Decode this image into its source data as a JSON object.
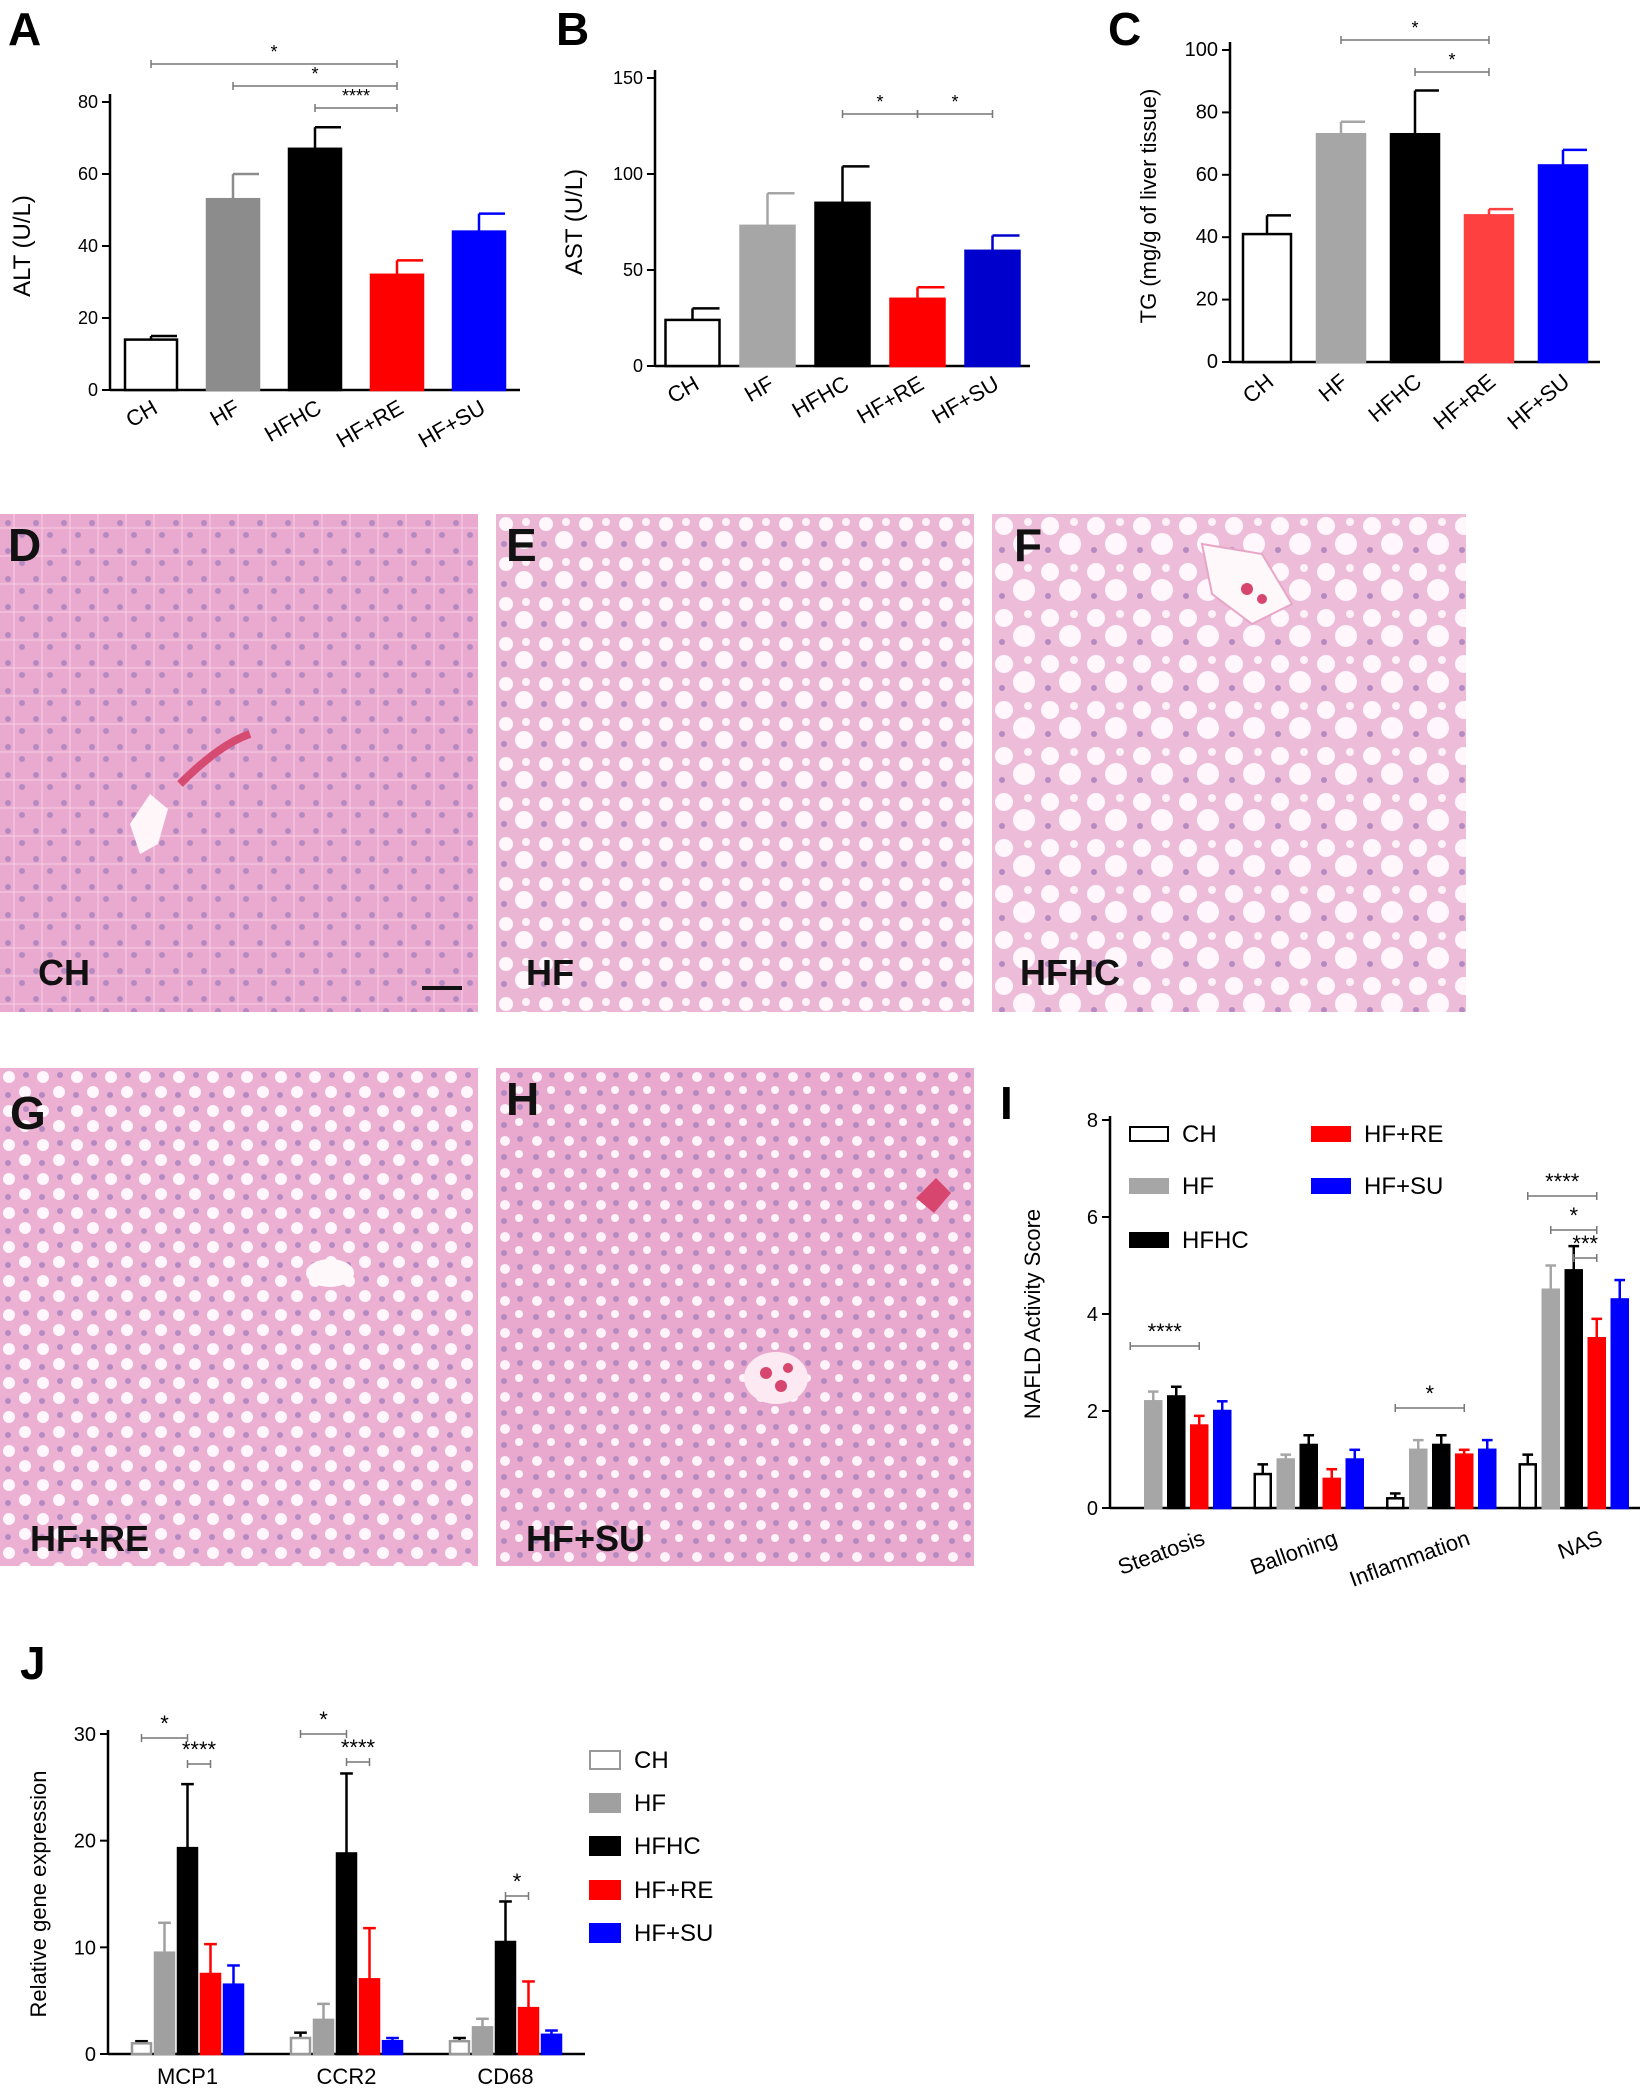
{
  "panels": {
    "A": "A",
    "B": "B",
    "C": "C",
    "D": "D",
    "E": "E",
    "F": "F",
    "G": "G",
    "H": "H",
    "I": "I",
    "J": "J"
  },
  "colors": {
    "CH": "#ffffff",
    "HF": "#8c8c8c",
    "HFHC": "#000000",
    "HF+RE": "#ff0000",
    "HF+SU": "#0000ff",
    "HF_B": "#a6a6a6",
    "HF+SU_B": "#0000cc",
    "HF+RE_C": "#ff4040",
    "HF_C": "#a6a6a6",
    "HF_I": "#a6a6a6",
    "HF_J": "#a0a0a0"
  },
  "micrographs": [
    {
      "letter": "D",
      "group": "CH"
    },
    {
      "letter": "E",
      "group": "HF"
    },
    {
      "letter": "F",
      "group": "HFHC"
    },
    {
      "letter": "G",
      "group": "HF+RE"
    },
    {
      "letter": "H",
      "group": "HF+SU"
    }
  ],
  "chart_data": [
    {
      "panel": "A",
      "type": "bar",
      "ylabel": "ALT (U/L)",
      "xlabel": "",
      "ylim": [
        0,
        80
      ],
      "yticks": [
        0,
        20,
        40,
        60,
        80
      ],
      "categories": [
        "CH",
        "HF",
        "HFHC",
        "HF+RE",
        "HF+SU"
      ],
      "values": [
        14,
        53,
        67,
        32,
        44
      ],
      "errors": [
        1,
        7,
        6,
        4,
        5
      ],
      "significance": [
        {
          "from": "CH",
          "to": "HF+RE",
          "label": "*"
        },
        {
          "from": "HF",
          "to": "HF+RE",
          "label": "*"
        },
        {
          "from": "HFHC",
          "to": "HF+RE",
          "label": "****"
        }
      ]
    },
    {
      "panel": "B",
      "type": "bar",
      "ylabel": "AST (U/L)",
      "xlabel": "",
      "ylim": [
        0,
        150
      ],
      "yticks": [
        0,
        50,
        100,
        150
      ],
      "categories": [
        "CH",
        "HF",
        "HFHC",
        "HF+RE",
        "HF+SU"
      ],
      "values": [
        24,
        73,
        85,
        35,
        60
      ],
      "errors": [
        6,
        17,
        19,
        6,
        8
      ],
      "significance": [
        {
          "from": "HFHC",
          "to": "HF+RE",
          "label": "*"
        },
        {
          "from": "HF+RE",
          "to": "HF+SU",
          "label": "*"
        }
      ]
    },
    {
      "panel": "C",
      "type": "bar",
      "ylabel": "TG (mg/g of liver tissue)",
      "xlabel": "",
      "ylim": [
        0,
        100
      ],
      "yticks": [
        0,
        20,
        40,
        60,
        80,
        100
      ],
      "categories": [
        "CH",
        "HF",
        "HFHC",
        "HF+RE",
        "HF+SU"
      ],
      "values": [
        41,
        73,
        73,
        47,
        63
      ],
      "errors": [
        6,
        4,
        14,
        2,
        5
      ],
      "significance": [
        {
          "from": "HF",
          "to": "HF+RE",
          "label": "*"
        },
        {
          "from": "HFHC",
          "to": "HF+RE",
          "label": "*"
        }
      ]
    },
    {
      "panel": "I",
      "type": "bar",
      "ylabel": "NAFLD Activity  Score",
      "xlabel": "",
      "ylim": [
        0,
        8
      ],
      "yticks": [
        0,
        2,
        4,
        6,
        8
      ],
      "categories": [
        "Steatosis",
        "Balloning",
        "Inflammation",
        "NAS"
      ],
      "series": [
        {
          "name": "CH",
          "values": [
            0,
            0.7,
            0.2,
            0.9
          ],
          "errors": [
            0,
            0.2,
            0.1,
            0.2
          ]
        },
        {
          "name": "HF",
          "values": [
            2.2,
            1.0,
            1.2,
            4.5
          ],
          "errors": [
            0.2,
            0.1,
            0.2,
            0.5
          ]
        },
        {
          "name": "HFHC",
          "values": [
            2.3,
            1.3,
            1.3,
            4.9
          ],
          "errors": [
            0.2,
            0.2,
            0.2,
            0.5
          ]
        },
        {
          "name": "HF+RE",
          "values": [
            1.7,
            0.6,
            1.1,
            3.5
          ],
          "errors": [
            0.2,
            0.2,
            0.1,
            0.4
          ]
        },
        {
          "name": "HF+SU",
          "values": [
            2.0,
            1.0,
            1.2,
            4.3
          ],
          "errors": [
            0.2,
            0.2,
            0.2,
            0.4
          ]
        }
      ],
      "legend": [
        "CH",
        "HF",
        "HFHC",
        "HF+RE",
        "HF+SU"
      ],
      "significance": [
        {
          "category": "Steatosis",
          "from": "CH",
          "to": "HF+RE",
          "label": "****"
        },
        {
          "category": "Inflammation",
          "from": "CH",
          "to": "HF+RE",
          "label": "*"
        },
        {
          "category": "NAS",
          "from": "CH",
          "to": "HF+RE",
          "label": "****"
        },
        {
          "category": "NAS",
          "from": "HF",
          "to": "HF+RE",
          "label": "*"
        },
        {
          "category": "NAS",
          "from": "HFHC",
          "to": "HF+RE",
          "label": "***"
        }
      ]
    },
    {
      "panel": "J",
      "type": "bar",
      "ylabel": "Relative gene expression",
      "xlabel": "",
      "ylim": [
        0,
        30
      ],
      "yticks": [
        0,
        10,
        20,
        30
      ],
      "categories": [
        "MCP1",
        "CCR2",
        "CD68"
      ],
      "series": [
        {
          "name": "CH",
          "values": [
            1,
            1.5,
            1.2
          ],
          "errors": [
            0.2,
            0.5,
            0.3
          ]
        },
        {
          "name": "HF",
          "values": [
            9.5,
            3.2,
            2.5
          ],
          "errors": [
            2.8,
            1.5,
            0.8
          ]
        },
        {
          "name": "HFHC",
          "values": [
            19.3,
            18.8,
            10.5
          ],
          "errors": [
            6,
            7.5,
            3.8
          ]
        },
        {
          "name": "HF+RE",
          "values": [
            7.5,
            7,
            4.3
          ],
          "errors": [
            2.8,
            4.8,
            2.5
          ]
        },
        {
          "name": "HF+SU",
          "values": [
            6.5,
            1.2,
            1.8
          ],
          "errors": [
            1.8,
            0.3,
            0.4
          ]
        }
      ],
      "legend": [
        "CH",
        "HF",
        "HFHC",
        "HF+RE",
        "HF+SU"
      ],
      "significance": [
        {
          "category": "MCP1",
          "from": "CH",
          "to": "HFHC",
          "label": "*"
        },
        {
          "category": "MCP1",
          "from": "HFHC",
          "to": "HF+RE",
          "label": "****"
        },
        {
          "category": "CCR2",
          "from": "CH",
          "to": "HFHC",
          "label": "*"
        },
        {
          "category": "CCR2",
          "from": "HFHC",
          "to": "HF+RE",
          "label": "****"
        },
        {
          "category": "CD68",
          "from": "HFHC",
          "to": "HF+RE",
          "label": "*"
        }
      ]
    }
  ]
}
